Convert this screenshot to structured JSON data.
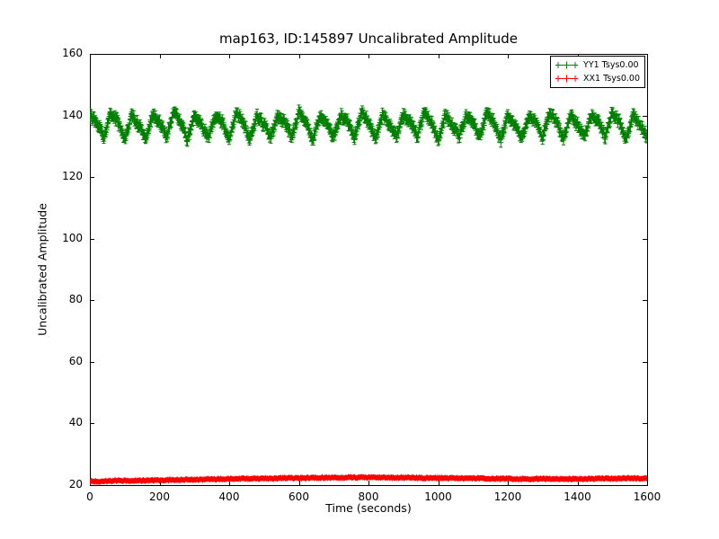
{
  "figure": {
    "title": "map163, ID:145897 Uncalibrated Amplitude",
    "xlabel": "Time (seconds)",
    "ylabel": "Uncalibrated Amplitude"
  },
  "chart_data": {
    "type": "line",
    "title": "map163, ID:145897 Uncalibrated Amplitude",
    "xlabel": "Time (seconds)",
    "ylabel": "Uncalibrated Amplitude",
    "xlim": [
      0,
      1600
    ],
    "ylim": [
      20,
      160
    ],
    "xticks": [
      0,
      200,
      400,
      600,
      800,
      1000,
      1200,
      1400,
      1600
    ],
    "yticks": [
      20,
      40,
      60,
      80,
      100,
      120,
      140,
      160
    ],
    "grid": false,
    "legend_position": "upper right",
    "marker": "plus-with-errorbars",
    "x": [
      0,
      20,
      40,
      60,
      80,
      100,
      120,
      140,
      160,
      180,
      200,
      220,
      240,
      260,
      280,
      300,
      320,
      340,
      360,
      380,
      400,
      420,
      440,
      460,
      480,
      500,
      520,
      540,
      560,
      580,
      600,
      620,
      640,
      660,
      680,
      700,
      720,
      740,
      760,
      780,
      800,
      820,
      840,
      860,
      880,
      900,
      920,
      940,
      960,
      980,
      1000,
      1020,
      1040,
      1060,
      1080,
      1100,
      1120,
      1140,
      1160,
      1180,
      1200,
      1220,
      1240,
      1260,
      1280,
      1300,
      1320,
      1340,
      1360,
      1380,
      1400,
      1420,
      1440,
      1460,
      1480,
      1500,
      1520,
      1540,
      1560,
      1580,
      1600
    ],
    "series": [
      {
        "name": "YY1 Tsys0.00",
        "color": "#008000",
        "yerr": 1.5,
        "noise": 1.0,
        "values": [
          140,
          138,
          133,
          141,
          138,
          132,
          140,
          137,
          133,
          140,
          138,
          133,
          141,
          138,
          132,
          140,
          137,
          133,
          140,
          138,
          133,
          141,
          138,
          132,
          140,
          137,
          133,
          140,
          138,
          133,
          141,
          138,
          132,
          140,
          137,
          133,
          140,
          138,
          133,
          141,
          138,
          132,
          140,
          137,
          133,
          140,
          138,
          133,
          141,
          138,
          132,
          140,
          137,
          133,
          140,
          138,
          133,
          141,
          138,
          132,
          140,
          137,
          133,
          140,
          138,
          133,
          141,
          138,
          132,
          140,
          137,
          133,
          140,
          138,
          133,
          141,
          138,
          132,
          140,
          137,
          133
        ]
      },
      {
        "name": "XX1 Tsys0.00",
        "color": "#ff0000",
        "yerr": 0.4,
        "noise": 0.25,
        "values": [
          21.2,
          21.2,
          21.3,
          21.3,
          21.4,
          21.4,
          21.4,
          21.5,
          21.5,
          21.6,
          21.6,
          21.6,
          21.7,
          21.7,
          21.8,
          21.8,
          21.8,
          21.9,
          21.9,
          22.0,
          22.0,
          22.0,
          22.1,
          22.1,
          22.1,
          22.2,
          22.2,
          22.2,
          22.3,
          22.3,
          22.3,
          22.3,
          22.4,
          22.4,
          22.4,
          22.4,
          22.4,
          22.5,
          22.5,
          22.5,
          22.5,
          22.5,
          22.5,
          22.4,
          22.4,
          22.4,
          22.4,
          22.4,
          22.3,
          22.3,
          22.3,
          22.3,
          22.3,
          22.2,
          22.2,
          22.2,
          22.2,
          22.1,
          22.1,
          22.1,
          22.1,
          22.1,
          22.0,
          22.0,
          22.0,
          22.0,
          22.0,
          22.0,
          22.0,
          22.0,
          22.0,
          22.0,
          22.1,
          22.1,
          22.1,
          22.1,
          22.1,
          22.2,
          22.2,
          22.2,
          22.2
        ]
      }
    ]
  }
}
